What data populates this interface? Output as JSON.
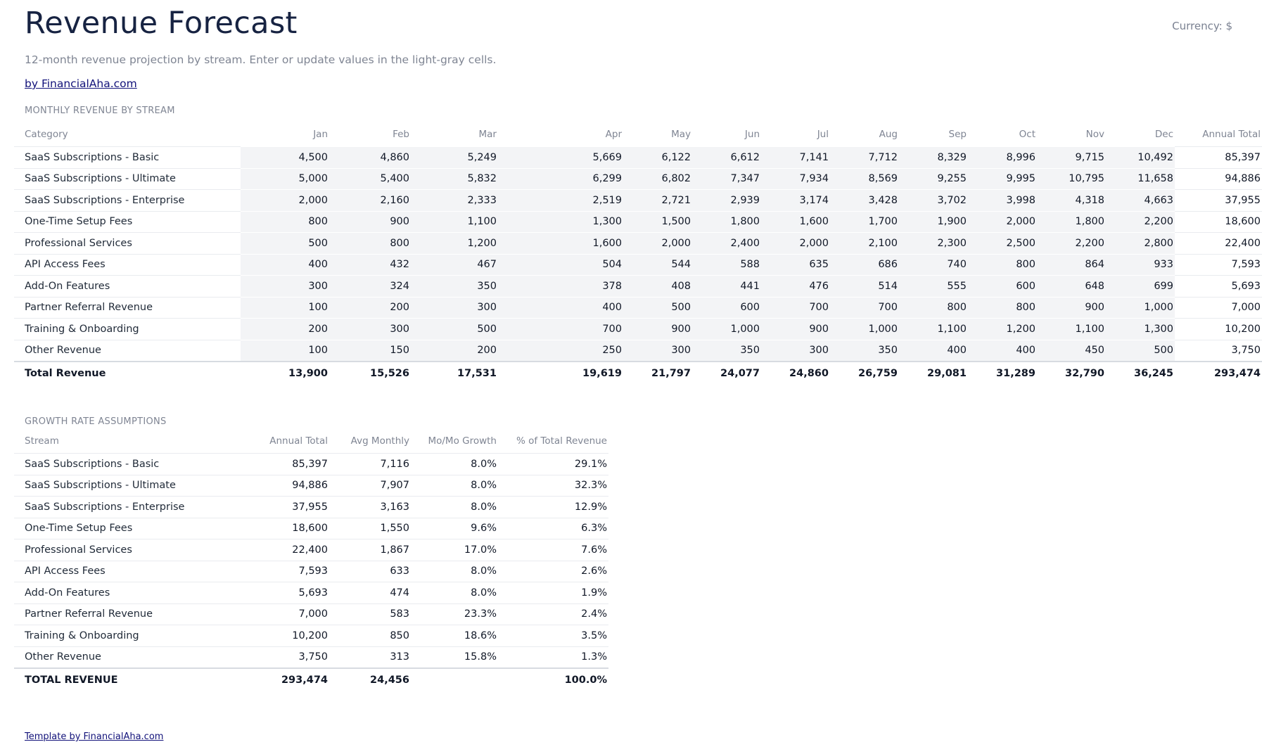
{
  "header": {
    "title": "Revenue Forecast",
    "currency": "Currency: $",
    "subtitle": "12-month revenue projection by stream. Enter or update values in the light-gray cells.",
    "byline": "by FinancialAha.com"
  },
  "revenue_section": {
    "label": "MONTHLY REVENUE BY STREAM",
    "columns": [
      "Category",
      "Jan",
      "Feb",
      "Mar",
      "Apr",
      "May",
      "Jun",
      "Jul",
      "Aug",
      "Sep",
      "Oct",
      "Nov",
      "Dec",
      "Annual Total"
    ],
    "rows": [
      [
        "SaaS Subscriptions - Basic",
        "4,500",
        "4,860",
        "5,249",
        "5,669",
        "6,122",
        "6,612",
        "7,141",
        "7,712",
        "8,329",
        "8,996",
        "9,715",
        "10,492",
        "85,397"
      ],
      [
        "SaaS Subscriptions - Ultimate",
        "5,000",
        "5,400",
        "5,832",
        "6,299",
        "6,802",
        "7,347",
        "7,934",
        "8,569",
        "9,255",
        "9,995",
        "10,795",
        "11,658",
        "94,886"
      ],
      [
        "SaaS Subscriptions - Enterprise",
        "2,000",
        "2,160",
        "2,333",
        "2,519",
        "2,721",
        "2,939",
        "3,174",
        "3,428",
        "3,702",
        "3,998",
        "4,318",
        "4,663",
        "37,955"
      ],
      [
        "One-Time Setup Fees",
        "800",
        "900",
        "1,100",
        "1,300",
        "1,500",
        "1,800",
        "1,600",
        "1,700",
        "1,900",
        "2,000",
        "1,800",
        "2,200",
        "18,600"
      ],
      [
        "Professional Services",
        "500",
        "800",
        "1,200",
        "1,600",
        "2,000",
        "2,400",
        "2,000",
        "2,100",
        "2,300",
        "2,500",
        "2,200",
        "2,800",
        "22,400"
      ],
      [
        "API Access Fees",
        "400",
        "432",
        "467",
        "504",
        "544",
        "588",
        "635",
        "686",
        "740",
        "800",
        "864",
        "933",
        "7,593"
      ],
      [
        "Add-On Features",
        "300",
        "324",
        "350",
        "378",
        "408",
        "441",
        "476",
        "514",
        "555",
        "600",
        "648",
        "699",
        "5,693"
      ],
      [
        "Partner Referral Revenue",
        "100",
        "200",
        "300",
        "400",
        "500",
        "600",
        "700",
        "700",
        "800",
        "800",
        "900",
        "1,000",
        "7,000"
      ],
      [
        "Training & Onboarding",
        "200",
        "300",
        "500",
        "700",
        "900",
        "1,000",
        "900",
        "1,000",
        "1,100",
        "1,200",
        "1,100",
        "1,300",
        "10,200"
      ],
      [
        "Other Revenue",
        "100",
        "150",
        "200",
        "250",
        "300",
        "350",
        "300",
        "350",
        "400",
        "400",
        "450",
        "500",
        "3,750"
      ]
    ],
    "total": [
      "Total Revenue",
      "13,900",
      "15,526",
      "17,531",
      "19,619",
      "21,797",
      "24,077",
      "24,860",
      "26,759",
      "29,081",
      "31,289",
      "32,790",
      "36,245",
      "293,474"
    ]
  },
  "growth_section": {
    "label": "GROWTH RATE ASSUMPTIONS",
    "columns": [
      "Stream",
      "Annual Total",
      "Avg Monthly",
      "Mo/Mo Growth",
      "% of Total Revenue"
    ],
    "rows": [
      [
        "SaaS Subscriptions - Basic",
        "85,397",
        "7,116",
        "8.0%",
        "29.1%"
      ],
      [
        "SaaS Subscriptions - Ultimate",
        "94,886",
        "7,907",
        "8.0%",
        "32.3%"
      ],
      [
        "SaaS Subscriptions - Enterprise",
        "37,955",
        "3,163",
        "8.0%",
        "12.9%"
      ],
      [
        "One-Time Setup Fees",
        "18,600",
        "1,550",
        "9.6%",
        "6.3%"
      ],
      [
        "Professional Services",
        "22,400",
        "1,867",
        "17.0%",
        "7.6%"
      ],
      [
        "API Access Fees",
        "7,593",
        "633",
        "8.0%",
        "2.6%"
      ],
      [
        "Add-On Features",
        "5,693",
        "474",
        "8.0%",
        "1.9%"
      ],
      [
        "Partner Referral Revenue",
        "7,000",
        "583",
        "23.3%",
        "2.4%"
      ],
      [
        "Training & Onboarding",
        "10,200",
        "850",
        "18.6%",
        "3.5%"
      ],
      [
        "Other Revenue",
        "3,750",
        "313",
        "15.8%",
        "1.3%"
      ]
    ],
    "total": [
      "TOTAL REVENUE",
      "293,474",
      "24,456",
      "",
      "100.0%"
    ]
  },
  "footer": {
    "link": "Template by FinancialAha.com"
  },
  "colors": {
    "title": "#172342",
    "muted": "#7f8593",
    "input_cell": "#f3f4f6",
    "link": "#12127a"
  }
}
